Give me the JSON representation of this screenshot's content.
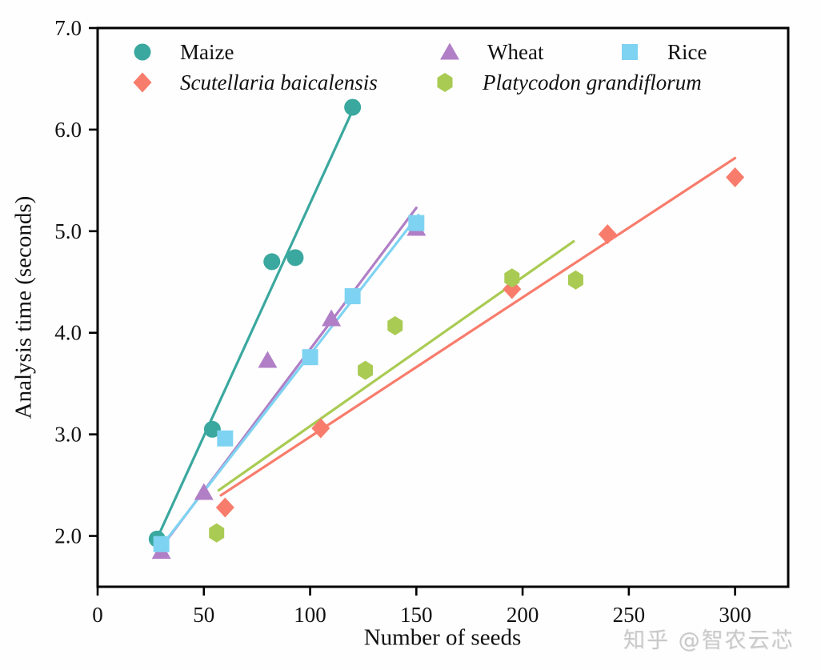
{
  "watermark": "知乎 @智农云芯",
  "chart_data": {
    "type": "scatter",
    "title": "",
    "xlabel": "Number of seeds",
    "ylabel": "Analysis time (seconds)",
    "xlim": [
      0,
      325
    ],
    "ylim": [
      1.5,
      7.0
    ],
    "grid": false,
    "legend_position": "inside top-left, two rows",
    "xticks": {
      "values": [
        0,
        50,
        100,
        150,
        200,
        250,
        300
      ],
      "labels": [
        "0",
        "50",
        "100",
        "150",
        "200",
        "250",
        "300"
      ]
    },
    "yticks": {
      "values": [
        2,
        3,
        4,
        5,
        6,
        7
      ],
      "labels": [
        "2.0",
        "3.0",
        "4.0",
        "5.0",
        "6.0",
        "7.0"
      ]
    },
    "series": [
      {
        "name": "Maize",
        "italic": false,
        "marker": "circle",
        "color": "#3BA89F",
        "points": [
          [
            28,
            1.97
          ],
          [
            54,
            3.05
          ],
          [
            82,
            4.7
          ],
          [
            93,
            4.74
          ],
          [
            120,
            6.22
          ]
        ],
        "trend_line": [
          [
            27,
            1.93
          ],
          [
            120,
            6.19
          ]
        ]
      },
      {
        "name": "Wheat",
        "italic": false,
        "marker": "triangle",
        "color": "#B17FC6",
        "points": [
          [
            30,
            1.85
          ],
          [
            50,
            2.43
          ],
          [
            80,
            3.73
          ],
          [
            110,
            4.14
          ],
          [
            150,
            5.03
          ]
        ],
        "trend_line": [
          [
            29,
            1.86
          ],
          [
            150,
            5.23
          ]
        ]
      },
      {
        "name": "Rice",
        "italic": false,
        "marker": "square",
        "color": "#7FD3F2",
        "points": [
          [
            30,
            1.92
          ],
          [
            60,
            2.96
          ],
          [
            100,
            3.76
          ],
          [
            120,
            4.36
          ],
          [
            150,
            5.08
          ]
        ],
        "trend_line": [
          [
            30,
            1.9
          ],
          [
            151,
            5.16
          ]
        ]
      },
      {
        "name": "Scutellaria baicalensis",
        "italic": true,
        "marker": "diamond",
        "color": "#F87C6C",
        "points": [
          [
            60,
            2.28
          ],
          [
            105,
            3.06
          ],
          [
            195,
            4.43
          ],
          [
            240,
            4.97
          ],
          [
            300,
            5.53
          ]
        ],
        "trend_line": [
          [
            58,
            2.4
          ],
          [
            300,
            5.72
          ]
        ]
      },
      {
        "name": "Platycodon grandiflorum",
        "italic": true,
        "marker": "hexagon",
        "color": "#A9CB53",
        "points": [
          [
            56,
            2.03
          ],
          [
            126,
            3.63
          ],
          [
            140,
            4.07
          ],
          [
            195,
            4.54
          ],
          [
            225,
            4.52
          ]
        ],
        "trend_line": [
          [
            57,
            2.45
          ],
          [
            224,
            4.9
          ]
        ]
      }
    ]
  }
}
